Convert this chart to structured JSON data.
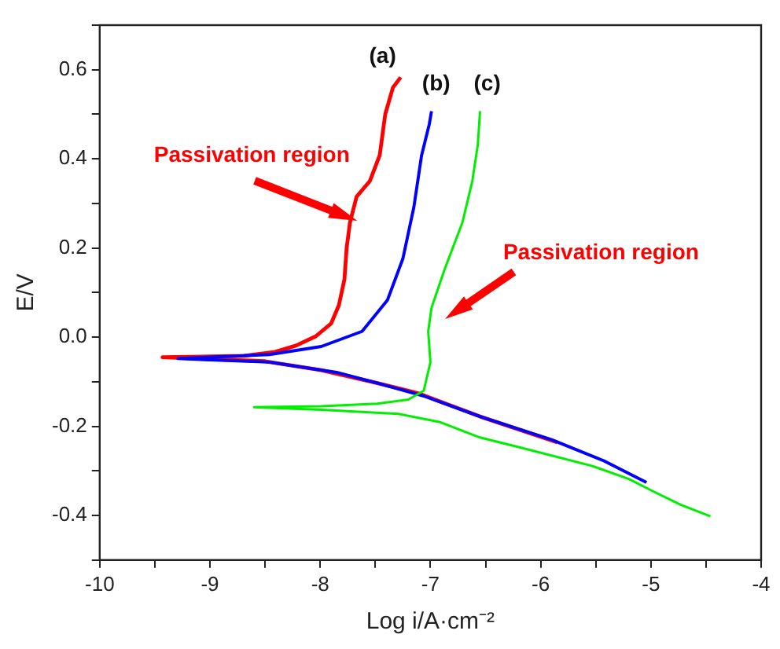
{
  "chart_data": {
    "type": "line",
    "xlabel": "Log i/A·cm⁻²",
    "ylabel": "E/V",
    "xlim": [
      -10,
      -4
    ],
    "ylim": [
      -0.5,
      0.7
    ],
    "xticks": [
      -10,
      {
        "value": -9.5,
        "label": null
      },
      -9,
      {
        "value": -8.5,
        "label": null
      },
      -8,
      {
        "value": -7.5,
        "label": null
      },
      -7,
      {
        "value": -6.5,
        "label": null
      },
      -6,
      {
        "value": -5.5,
        "label": null
      },
      -5,
      {
        "value": -4.5,
        "label": null
      },
      -4
    ],
    "yticks": [
      {
        "value": -0.5,
        "label": null
      },
      -0.4,
      {
        "value": -0.3,
        "label": null
      },
      -0.2,
      {
        "value": -0.1,
        "label": null
      },
      {
        "value": 0,
        "label": "0.0"
      },
      {
        "value": 0.1,
        "label": null
      },
      0.2,
      {
        "value": 0.3,
        "label": null
      },
      0.4,
      {
        "value": 0.5,
        "label": null
      },
      0.6,
      {
        "value": 0.7,
        "label": null
      }
    ],
    "grid": false,
    "legend": false,
    "marker": "none",
    "line_style": "solid",
    "series": [
      {
        "name": "(a)",
        "color": "#ff0000",
        "x": [
          -5.85,
          -6.55,
          -7.11,
          -7.48,
          -7.99,
          -8.5,
          -9.43,
          -8.69,
          -8.41,
          -8.22,
          -8.04,
          -7.9,
          -7.83,
          -7.78,
          -7.76,
          -7.73,
          -7.67,
          -7.55,
          -7.46,
          -7.41,
          -7.34,
          -7.27
        ],
        "values": [
          -0.236,
          -0.178,
          -0.126,
          -0.103,
          -0.074,
          -0.054,
          -0.045,
          -0.042,
          -0.033,
          -0.019,
          0.002,
          0.031,
          0.072,
          0.13,
          0.2,
          0.257,
          0.315,
          0.35,
          0.408,
          0.5,
          0.56,
          0.583
        ]
      },
      {
        "name": "(b)",
        "color": "#0000ff",
        "x": [
          -5.04,
          -5.43,
          -5.9,
          -6.55,
          -7.06,
          -7.48,
          -7.85,
          -8.46,
          -9.29,
          -8.46,
          -7.99,
          -7.62,
          -7.39,
          -7.25,
          -7.15,
          -7.08,
          -7.01,
          -6.99
        ],
        "values": [
          -0.326,
          -0.277,
          -0.23,
          -0.178,
          -0.132,
          -0.103,
          -0.079,
          -0.056,
          -0.048,
          -0.039,
          -0.021,
          0.013,
          0.083,
          0.176,
          0.292,
          0.408,
          0.478,
          0.507
        ]
      },
      {
        "name": "(c)",
        "color": "#00ee00",
        "x": [
          -4.46,
          -4.73,
          -4.97,
          -5.2,
          -5.53,
          -6.13,
          -6.55,
          -6.92,
          -7.29,
          -7.99,
          -8.6,
          -7.99,
          -7.48,
          -7.2,
          -7.06,
          -7.0,
          -7.02,
          -6.99,
          -6.87,
          -6.71,
          -6.62,
          -6.57,
          -6.55
        ],
        "values": [
          -0.402,
          -0.376,
          -0.347,
          -0.318,
          -0.289,
          -0.251,
          -0.225,
          -0.19,
          -0.172,
          -0.163,
          -0.157,
          -0.155,
          -0.149,
          -0.14,
          -0.12,
          -0.056,
          0.013,
          0.066,
          0.153,
          0.257,
          0.35,
          0.432,
          0.507
        ]
      }
    ],
    "annotations": [
      "Passivation region",
      "Passivation region"
    ]
  }
}
